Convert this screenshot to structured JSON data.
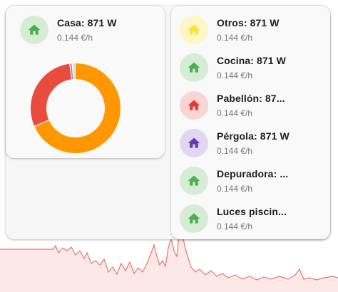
{
  "colors": {
    "green_bg": "#d6ecd6",
    "green_icon": "#4caf50",
    "yellow_bg": "#fdf7c8",
    "yellow_icon": "#fde12a",
    "red_bg": "#fbd4d4",
    "red_icon": "#e53935",
    "purple_bg": "#e0d7f0",
    "purple_icon": "#673ab7",
    "donut_orange": "#ff9800",
    "donut_red": "#e74c3c",
    "graph_line": "#e57373",
    "graph_fill": "#fde8e8"
  },
  "casa": {
    "name": "Casa: 871 W",
    "price": "0.144 €/h",
    "icon": "home-icon"
  },
  "donut": {
    "segments": [
      {
        "value": 68.5,
        "color": "#ff9800"
      },
      {
        "value": 29.5,
        "color": "#e74c3c"
      },
      {
        "value": 0.8,
        "color": "#9575cd"
      },
      {
        "value": 1.2,
        "color": "#e0e0e0"
      }
    ]
  },
  "entities": [
    {
      "name": "Otros: 871 W",
      "price": "0.144 €/h",
      "icon": "home-icon",
      "tone": "yellow"
    },
    {
      "name": "Cocina: 871 W",
      "price": "0.144 €/h",
      "icon": "home-icon",
      "tone": "green"
    },
    {
      "name": "Pabellón: 87...",
      "price": "0.144 €/h",
      "icon": "home-icon",
      "tone": "red"
    },
    {
      "name": "Pérgola: 871 W",
      "price": "0.144 €/h",
      "icon": "home-icon",
      "tone": "purple"
    },
    {
      "name": "Depuradora: ...",
      "price": "0.144 €/h",
      "icon": "home-icon",
      "tone": "green"
    },
    {
      "name": "Luces piscin...",
      "price": "0.144 €/h",
      "icon": "home-icon",
      "tone": "green"
    }
  ]
}
